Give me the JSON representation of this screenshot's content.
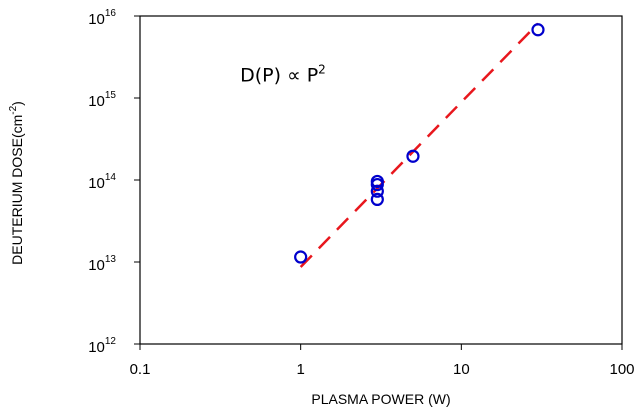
{
  "chart_data": {
    "type": "scatter",
    "xlabel": "PLASMA POWER (W)",
    "ylabel": "DEUTERIUM DOSE(cm",
    "ylabel_exp": "-2",
    "ylabel_close": ")",
    "x_scale": "log",
    "y_scale": "log",
    "xlim": [
      0.1,
      100
    ],
    "ylim": [
      1000000000000.0,
      1e+16
    ],
    "x_ticks": [
      {
        "value": 0.1,
        "label": "0.1"
      },
      {
        "value": 1,
        "label": "1"
      },
      {
        "value": 10,
        "label": "10"
      },
      {
        "value": 100,
        "label": "100"
      }
    ],
    "y_ticks": [
      {
        "value": 1000000000000.0,
        "base": "10",
        "exp": "12"
      },
      {
        "value": 10000000000000.0,
        "base": "10",
        "exp": "13"
      },
      {
        "value": 100000000000000.0,
        "base": "10",
        "exp": "14"
      },
      {
        "value": 1000000000000000.0,
        "base": "10",
        "exp": "15"
      },
      {
        "value": 1e+16,
        "base": "10",
        "exp": "16"
      }
    ],
    "grid": false,
    "legend": "none",
    "series": [
      {
        "marker": "open-circle",
        "color": "#0000cc",
        "points": [
          {
            "x": 1,
            "y": 11500000000000.0
          },
          {
            "x": 3,
            "y": 58000000000000.0
          },
          {
            "x": 3,
            "y": 73000000000000.0
          },
          {
            "x": 3,
            "y": 88000000000000.0
          },
          {
            "x": 3,
            "y": 96000000000000.0
          },
          {
            "x": 5,
            "y": 195000000000000.0
          },
          {
            "x": 30,
            "y": 6800000000000000.0
          }
        ]
      },
      {
        "line_style": "dashed",
        "color": "#e8171d",
        "points": [
          {
            "x": 1,
            "y": 8700000000000.0
          },
          {
            "x": 30,
            "y": 8100000000000000.0
          }
        ]
      }
    ],
    "annotation": {
      "text": "D(P) ∝ P",
      "exp": "2",
      "x": 0.42,
      "y": 1600000000000000.0
    }
  }
}
